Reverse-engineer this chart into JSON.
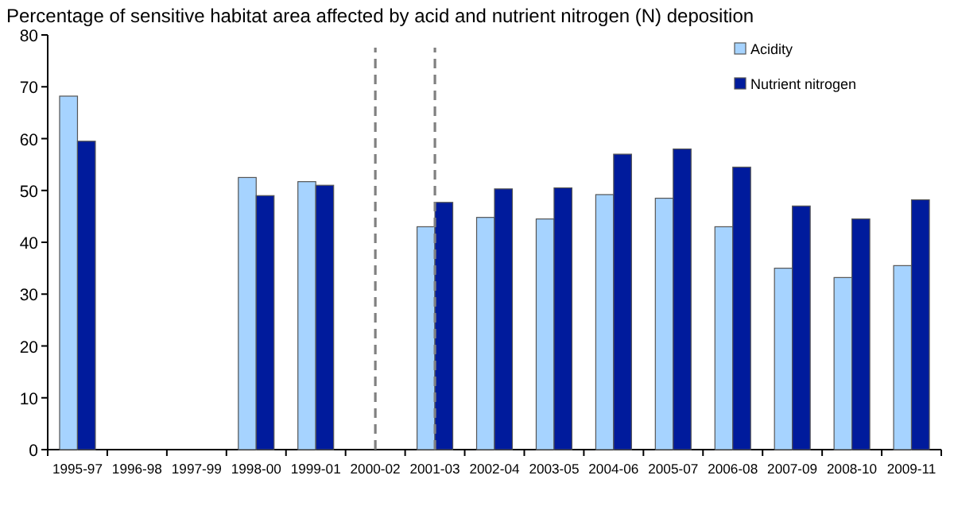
{
  "chart_data": {
    "type": "bar",
    "title": "Percentage of sensitive habitat area affected by acid and nutrient nitrogen (N) deposition",
    "categories": [
      "1995-97",
      "1996-98",
      "1997-99",
      "1998-00",
      "1999-01",
      "2000-02",
      "2001-03",
      "2002-04",
      "2003-05",
      "2004-06",
      "2005-07",
      "2006-08",
      "2007-09",
      "2008-10",
      "2009-11"
    ],
    "series": [
      {
        "name": "Acidity",
        "color": "#a6d3ff",
        "values": [
          68.2,
          null,
          null,
          52.5,
          51.7,
          null,
          43,
          44.8,
          44.5,
          49.2,
          48.5,
          43,
          35,
          33.2,
          35.5
        ]
      },
      {
        "name": "Nutrient nitrogen",
        "color": "#001b9c",
        "values": [
          59.5,
          null,
          null,
          49,
          51,
          null,
          47.7,
          50.3,
          50.5,
          57,
          58,
          54.5,
          47,
          44.5,
          48.2
        ]
      }
    ],
    "ylim": [
      0,
      80
    ],
    "yticks": [
      0,
      10,
      20,
      30,
      40,
      50,
      60,
      70,
      80
    ],
    "legend": "top right"
  }
}
